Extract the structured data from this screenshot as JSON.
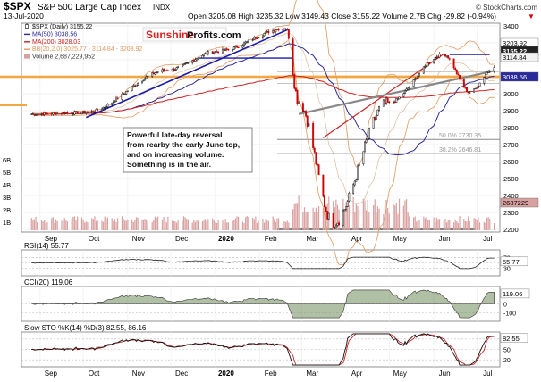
{
  "header": {
    "symbol": "$SPX",
    "name": "S&P 500 Large Cap Index",
    "exchange": "INDX",
    "watermark": "© StockCharts.com",
    "date": "13-Jul-2020",
    "ohlc_line": "Open 3205.08  High 3235.32  Low 3149.43  Close 3155.22  Volume 2.7B  Chg -29.82 (-0.94%)",
    "chg_arrow": "▼"
  },
  "logo": {
    "part1": "Sunshine",
    "part2": "Profits.com"
  },
  "legend": [
    {
      "label": "$SPX (Daily) 3155.22",
      "color": "#111111",
      "marker": "candle"
    },
    {
      "label": "MA(50) 3038.56",
      "color": "#2a2a9a",
      "marker": "line"
    },
    {
      "label": "MA(200) 3028.03",
      "color": "#cc2222",
      "marker": "line"
    },
    {
      "label": "BB(20,2.0) 3025.77 - 3114.84 - 3203.92",
      "color": "#e09a60",
      "marker": "line"
    },
    {
      "label": "Volume 2,687,229,952",
      "color": "#d9a0a0",
      "marker": "box"
    }
  ],
  "annotation": "Powerful late-day reversal from rearby the early June top, and on increasing volume. Something is in the air.",
  "annotation_lines": [
    "Powerful late-day reversal",
    "from rearby the early June top,",
    "and on increasing volume.",
    "Something is in the air."
  ],
  "fib_labels": [
    "38.2% 2646.81",
    "50.0% 2730.35"
  ],
  "price_badges": [
    "3203.92",
    "3155.22",
    "3114.84",
    "3038.56"
  ],
  "volume_badge": "2687229",
  "colors": {
    "up": "#111111",
    "down": "#cc0000",
    "bb": "#e09a60",
    "ma50": "#2a2a9a",
    "ma200": "#cc2222",
    "orange_band": "#f4a640",
    "volume": "#d9a0a0"
  },
  "chart_data": [
    {
      "type": "candlestick",
      "title": "$SPX S&P 500 Large Cap Index INDX",
      "ylim": [
        2200,
        3400
      ],
      "yticks": [
        2200,
        2300,
        2400,
        2500,
        2600,
        2700,
        2800,
        2900,
        3000,
        3100,
        3200,
        3300,
        3400
      ],
      "volume_ticks": [
        "1B",
        "2B",
        "3B",
        "4B",
        "5B",
        "6B"
      ],
      "x_months": [
        "Sep",
        "Oct",
        "Nov",
        "Dec",
        "2020",
        "Feb",
        "Mar",
        "Apr",
        "May",
        "Jun",
        "Jul"
      ],
      "key_points": [
        {
          "date": "2019-08-26",
          "close": 2880
        },
        {
          "date": "2019-10-03",
          "close": 2890
        },
        {
          "date": "2019-11-29",
          "close": 3140
        },
        {
          "date": "2020-01-02",
          "close": 3250
        },
        {
          "date": "2020-02-19",
          "close": 3386
        },
        {
          "date": "2020-02-28",
          "close": 2954
        },
        {
          "date": "2020-03-23",
          "close": 2237
        },
        {
          "date": "2020-04-29",
          "close": 2940
        },
        {
          "date": "2020-06-08",
          "close": 3232
        },
        {
          "date": "2020-06-26",
          "close": 3010
        },
        {
          "date": "2020-07-13",
          "close": 3155
        }
      ],
      "last_close": 3155.22
    },
    {
      "type": "line",
      "title": "RSI(14) 55.77",
      "ylim": [
        0,
        100
      ],
      "yticks": [
        30,
        50,
        70
      ],
      "last_value": 55.77
    },
    {
      "type": "area",
      "title": "CCI(20) 119.06",
      "ylim": [
        -200,
        200
      ],
      "yticks": [
        -100,
        0,
        100
      ],
      "last_value": 119.06
    },
    {
      "type": "line",
      "title": "Slow STO %K(14) %D(3) 82.55, 86.16",
      "series": [
        {
          "name": "%K(14)",
          "last_value": 82.55
        },
        {
          "name": "%D(3)",
          "last_value": 86.16
        }
      ],
      "ylim": [
        0,
        100
      ],
      "yticks": [
        20,
        50,
        80
      ],
      "x_months": [
        "Sep",
        "Oct",
        "Nov",
        "Dec",
        "2020",
        "Feb",
        "Mar",
        "Apr",
        "May",
        "Jun",
        "Jul"
      ]
    }
  ]
}
